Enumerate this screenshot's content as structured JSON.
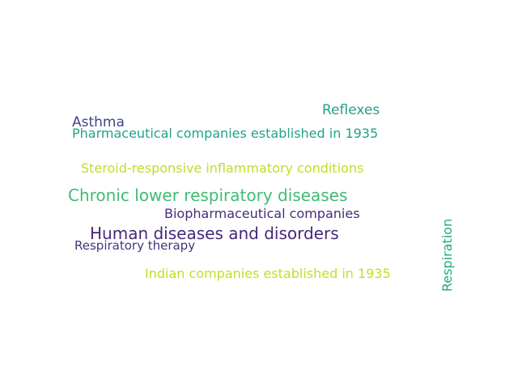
{
  "words": [
    {
      "text": "Reflexes",
      "color": "#2a9e8a"
    },
    {
      "text": "Asthma",
      "color": "#414487"
    },
    {
      "text": "Pharmaceutical companies established in 1935",
      "color": "#21a38a"
    },
    {
      "text": "Steroid-responsive inflammatory conditions",
      "color": "#bddf26"
    },
    {
      "text": "Chronic lower respiratory diseases",
      "color": "#3fbc73"
    },
    {
      "text": "Biopharmaceutical companies",
      "color": "#472d7b"
    },
    {
      "text": "Human diseases and disorders",
      "color": "#482878"
    },
    {
      "text": "Respiratory therapy",
      "color": "#46337e"
    },
    {
      "text": "Indian companies established in 1935",
      "color": "#c2df23"
    },
    {
      "text": "Respiration",
      "color": "#22a884"
    }
  ]
}
